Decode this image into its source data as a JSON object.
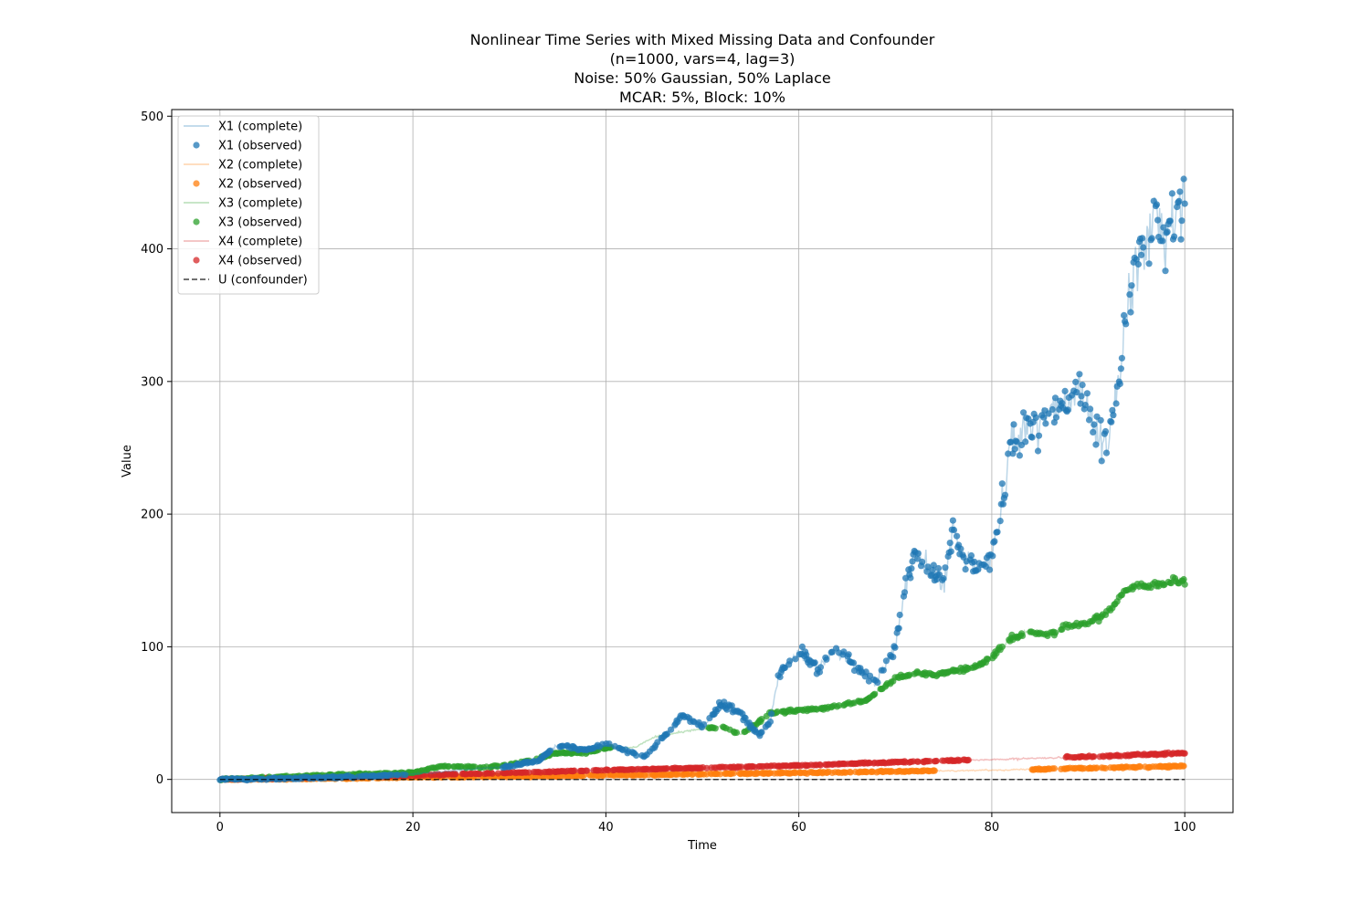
{
  "chart_data": {
    "type": "scatter",
    "title_lines": [
      "Nonlinear Time Series with Mixed Missing Data and Confounder",
      "(n=1000, vars=4, lag=3)",
      "Noise: 50% Gaussian, 50% Laplace",
      "MCAR: 5%, Block: 10%"
    ],
    "xlabel": "Time",
    "ylabel": "Value",
    "xlim": [
      -5,
      105
    ],
    "ylim": [
      -25,
      505
    ],
    "xticks": [
      "0",
      "20",
      "40",
      "60",
      "80",
      "100"
    ],
    "yticks": [
      "0",
      "100",
      "200",
      "300",
      "400",
      "500"
    ],
    "grid": true,
    "legend_position": "upper-left",
    "series": [
      {
        "name": "X1",
        "color": "#1f77b4",
        "complete_label": "X1 (complete)",
        "observed_label": "X1 (observed)",
        "profile": [
          [
            0,
            0
          ],
          [
            10,
            1
          ],
          [
            20,
            4
          ],
          [
            25,
            7
          ],
          [
            30,
            10
          ],
          [
            33,
            14
          ],
          [
            35,
            26
          ],
          [
            38,
            22
          ],
          [
            40,
            27
          ],
          [
            42,
            22
          ],
          [
            44,
            17
          ],
          [
            46,
            32
          ],
          [
            48,
            48
          ],
          [
            50,
            40
          ],
          [
            52,
            57
          ],
          [
            54,
            50
          ],
          [
            55,
            40
          ],
          [
            56,
            33
          ],
          [
            57,
            44
          ],
          [
            58,
            80
          ],
          [
            60,
            96
          ],
          [
            62,
            84
          ],
          [
            64,
            98
          ],
          [
            66,
            84
          ],
          [
            68,
            72
          ],
          [
            70,
            102
          ],
          [
            71,
            142
          ],
          [
            72,
            172
          ],
          [
            73,
            163
          ],
          [
            75,
            146
          ],
          [
            76,
            188
          ],
          [
            77,
            166
          ],
          [
            78,
            163
          ],
          [
            79,
            158
          ],
          [
            80,
            170
          ],
          [
            81,
            202
          ],
          [
            82,
            258
          ],
          [
            84,
            265
          ],
          [
            86,
            278
          ],
          [
            88,
            282
          ],
          [
            89,
            294
          ],
          [
            90,
            276
          ],
          [
            91,
            262
          ],
          [
            92,
            254
          ],
          [
            93,
            294
          ],
          [
            94,
            346
          ],
          [
            95,
            392
          ],
          [
            96,
            402
          ],
          [
            97,
            428
          ],
          [
            98,
            410
          ],
          [
            99,
            424
          ],
          [
            100,
            442
          ]
        ],
        "relative_noise": 0.055,
        "min_noise": 0.8
      },
      {
        "name": "X2",
        "color": "#ff7f0e",
        "complete_label": "X2 (complete)",
        "observed_label": "X2 (observed)",
        "profile": [
          [
            0,
            0
          ],
          [
            10,
            0.5
          ],
          [
            20,
            1.5
          ],
          [
            40,
            3
          ],
          [
            60,
            5
          ],
          [
            80,
            7
          ],
          [
            90,
            8.5
          ],
          [
            100,
            10
          ]
        ],
        "relative_noise": 0.06,
        "min_noise": 0.5
      },
      {
        "name": "X3",
        "color": "#2ca02c",
        "complete_label": "X3 (complete)",
        "observed_label": "X3 (observed)",
        "profile": [
          [
            0,
            0
          ],
          [
            10,
            3
          ],
          [
            20,
            5
          ],
          [
            23,
            10
          ],
          [
            28,
            9
          ],
          [
            32,
            14
          ],
          [
            35,
            20
          ],
          [
            38,
            20
          ],
          [
            40,
            24
          ],
          [
            43,
            24
          ],
          [
            45,
            32
          ],
          [
            48,
            36
          ],
          [
            52,
            40
          ],
          [
            54,
            34
          ],
          [
            56,
            44
          ],
          [
            57,
            50
          ],
          [
            60,
            52
          ],
          [
            64,
            55
          ],
          [
            67,
            60
          ],
          [
            68,
            65
          ],
          [
            70,
            76
          ],
          [
            72,
            80
          ],
          [
            74,
            78
          ],
          [
            76,
            82
          ],
          [
            78,
            84
          ],
          [
            80,
            92
          ],
          [
            82,
            106
          ],
          [
            84,
            112
          ],
          [
            86,
            108
          ],
          [
            88,
            116
          ],
          [
            90,
            118
          ],
          [
            92,
            126
          ],
          [
            94,
            144
          ],
          [
            96,
            146
          ],
          [
            98,
            148
          ],
          [
            100,
            150
          ]
        ],
        "relative_noise": 0.02,
        "min_noise": 0.6
      },
      {
        "name": "X4",
        "color": "#d62728",
        "complete_label": "X4 (complete)",
        "observed_label": "X4 (observed)",
        "profile": [
          [
            0,
            0
          ],
          [
            10,
            1.5
          ],
          [
            20,
            3
          ],
          [
            40,
            7
          ],
          [
            60,
            10.5
          ],
          [
            70,
            13
          ],
          [
            80,
            15
          ],
          [
            90,
            17
          ],
          [
            100,
            20
          ]
        ],
        "relative_noise": 0.04,
        "min_noise": 0.4
      }
    ],
    "confounder": {
      "name": "U",
      "label": "U (confounder)",
      "color": "#000000",
      "profile": [
        [
          0,
          0
        ],
        [
          100,
          0
        ]
      ]
    }
  }
}
